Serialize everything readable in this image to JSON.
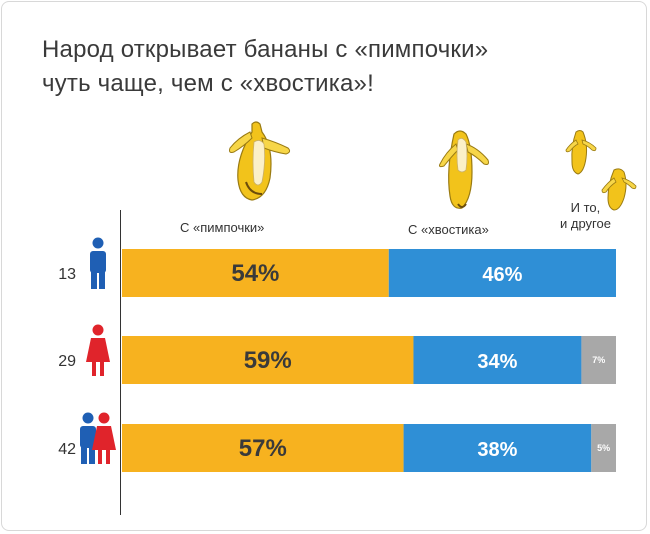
{
  "header": {
    "title_line1": "Народ открывает бананы с «пимпочки»",
    "title_line2": "чуть чаще, чем с «хвостика»!"
  },
  "chart_data": {
    "type": "bar",
    "orientation": "horizontal",
    "stacked": true,
    "categories": [
      "13",
      "29",
      "42"
    ],
    "category_groups": [
      "male",
      "female",
      "both"
    ],
    "series": [
      {
        "name": "С «пимпочки»",
        "color": "#f7b21f",
        "values": [
          54,
          59,
          57
        ],
        "labels": [
          "54%",
          "59%",
          "57%"
        ]
      },
      {
        "name": "С «хвостика»",
        "color": "#2f8fd6",
        "values": [
          46,
          34,
          38
        ],
        "labels": [
          "46%",
          "34%",
          "38%"
        ]
      },
      {
        "name": "И то, и другое",
        "color": "#a8a8a8",
        "values": [
          0,
          7,
          5
        ],
        "labels": [
          "",
          "7%",
          "5%"
        ]
      }
    ],
    "series_label_lines": [
      [
        "С «пимпочки»"
      ],
      [
        "С «хвостика»"
      ],
      [
        "И то,",
        "и другое"
      ]
    ],
    "xlim": [
      0,
      100
    ]
  }
}
